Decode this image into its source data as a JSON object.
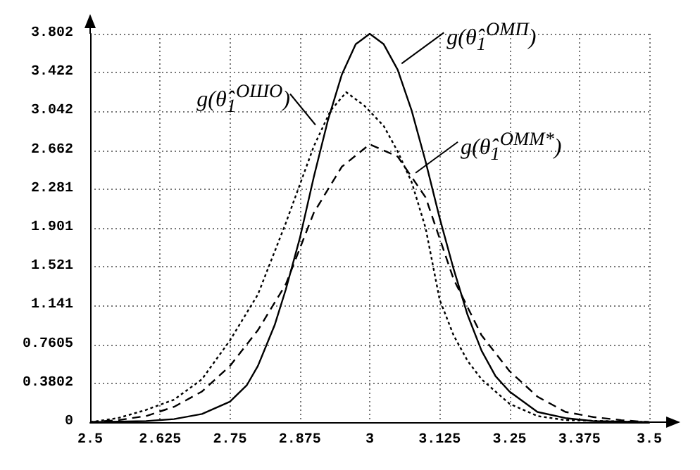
{
  "chart_data": {
    "type": "line",
    "xlim": [
      2.5,
      3.5
    ],
    "xticks": [
      2.5,
      2.625,
      2.75,
      2.875,
      3,
      3.125,
      3.25,
      3.375,
      3.5
    ],
    "ylim": [
      0,
      3.802
    ],
    "yticks": [
      0,
      0.3802,
      0.7605,
      1.141,
      1.521,
      1.901,
      2.281,
      2.662,
      3.042,
      3.422,
      3.802
    ],
    "grid": true,
    "marker": "none",
    "series": [
      {
        "color": "#000000",
        "line_style": "solid",
        "x": [
          2.5,
          2.6,
          2.65,
          2.7,
          2.75,
          2.78,
          2.8,
          2.83,
          2.85,
          2.875,
          2.9,
          2.925,
          2.95,
          2.975,
          3.0,
          3.025,
          3.05,
          3.075,
          3.1,
          3.125,
          3.15,
          3.175,
          3.2,
          3.225,
          3.25,
          3.3,
          3.35,
          3.4,
          3.5
        ],
        "values": [
          0,
          0.01,
          0.03,
          0.08,
          0.2,
          0.36,
          0.55,
          0.95,
          1.3,
          1.8,
          2.4,
          2.95,
          3.4,
          3.7,
          3.802,
          3.7,
          3.45,
          3.05,
          2.55,
          2.0,
          1.5,
          1.05,
          0.7,
          0.45,
          0.3,
          0.1,
          0.04,
          0.01,
          0
        ]
      },
      {
        "color": "#000000",
        "line_style": "dotted",
        "x": [
          2.5,
          2.55,
          2.6,
          2.65,
          2.7,
          2.75,
          2.8,
          2.85,
          2.9,
          2.93,
          2.958,
          2.99,
          3.025,
          3.05,
          3.075,
          3.1,
          3.125,
          3.15,
          3.175,
          3.2,
          3.25,
          3.3,
          3.35,
          3.5
        ],
        "values": [
          0,
          0.04,
          0.12,
          0.22,
          0.42,
          0.8,
          1.25,
          1.95,
          2.7,
          3.05,
          3.23,
          3.1,
          2.9,
          2.65,
          2.35,
          1.9,
          1.2,
          0.85,
          0.6,
          0.42,
          0.18,
          0.06,
          0.02,
          0
        ]
      },
      {
        "color": "#000000",
        "line_style": "dashed",
        "x": [
          2.5,
          2.55,
          2.6,
          2.65,
          2.7,
          2.75,
          2.8,
          2.85,
          2.9,
          2.95,
          3.0,
          3.05,
          3.1,
          3.15,
          3.2,
          3.25,
          3.3,
          3.35,
          3.4,
          3.45,
          3.5
        ],
        "values": [
          0,
          0.02,
          0.06,
          0.15,
          0.3,
          0.55,
          0.9,
          1.35,
          2.05,
          2.5,
          2.72,
          2.6,
          2.2,
          1.4,
          0.85,
          0.5,
          0.25,
          0.1,
          0.05,
          0.02,
          0
        ]
      }
    ],
    "annotations": [
      {
        "text": "g(θ̂$_{1}$$^{ОМП}$)",
        "x": 3.057,
        "y": 3.51
      },
      {
        "text": "g(θ̂$_{1}$$^{ОШО}$)",
        "x": 2.903,
        "y": 2.91
      },
      {
        "text": "g(θ̂$_{1}$$^{ОММ*}$)",
        "x": 3.082,
        "y": 2.44
      }
    ]
  }
}
